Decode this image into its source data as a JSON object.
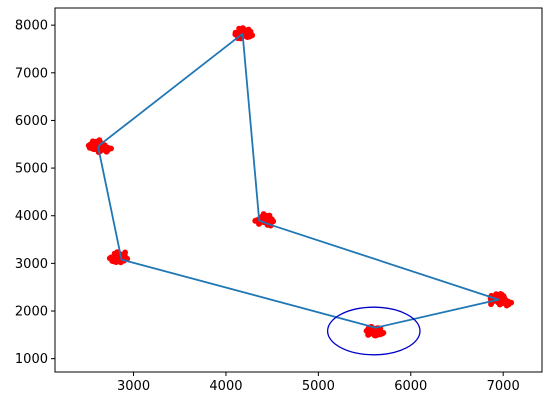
{
  "chart_data": {
    "type": "scatter",
    "title": "",
    "xlabel": "",
    "ylabel": "",
    "xlim": [
      2150,
      7420
    ],
    "ylim": [
      720,
      8360
    ],
    "x_ticks": [
      3000,
      4000,
      5000,
      6000,
      7000
    ],
    "y_ticks": [
      1000,
      2000,
      3000,
      4000,
      5000,
      6000,
      7000,
      8000
    ],
    "grid": false,
    "legend": "none",
    "colors": {
      "points": "#ff0000",
      "path": "#1f77b4",
      "highlight": "#0000cc",
      "axes": "#000000"
    },
    "clusters": [
      {
        "center": [
          4200,
          7820
        ],
        "n": 55
      },
      {
        "center": [
          2620,
          5460
        ],
        "n": 55
      },
      {
        "center": [
          4420,
          3900
        ],
        "n": 55
      },
      {
        "center": [
          2830,
          3110
        ],
        "n": 55
      },
      {
        "center": [
          5600,
          1580
        ],
        "n": 55
      },
      {
        "center": [
          6960,
          2240
        ],
        "n": 55
      }
    ],
    "path": [
      [
        4180,
        7820
      ],
      [
        2630,
        5480
      ],
      [
        2620,
        5420
      ],
      [
        2870,
        3080
      ],
      [
        5620,
        1650
      ],
      [
        6950,
        2240
      ],
      [
        4450,
        3830
      ],
      [
        4360,
        3900
      ],
      [
        4180,
        7820
      ]
    ],
    "highlight_ellipse": {
      "center": [
        5600,
        1580
      ],
      "rx": 500,
      "ry": 500
    }
  }
}
